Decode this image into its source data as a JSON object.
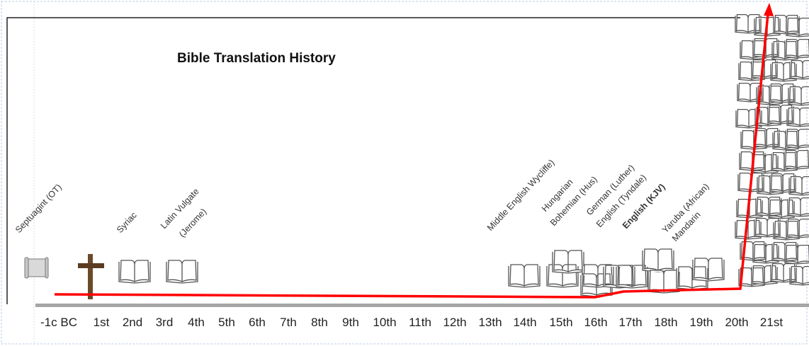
{
  "title": "Bible Translation History",
  "axis_labels": [
    "-1c BC",
    "1st",
    "2nd",
    "3rd",
    "4th",
    "5th",
    "6th",
    "7th",
    "8th",
    "9th",
    "10th",
    "11th",
    "12th",
    "13th",
    "14th",
    "15th",
    "16th",
    "17th",
    "18th",
    "19th",
    "20th",
    "21st"
  ],
  "translations": [
    {
      "text": "Septuagint (OT)",
      "bold": false
    },
    {
      "text": "Syriac",
      "bold": false
    },
    {
      "text": "Latin Vulgate",
      "bold": false
    },
    {
      "text": "(Jerome)",
      "bold": false
    },
    {
      "text": "Middle English Wycliffe)",
      "bold": false
    },
    {
      "text": "Hungarian",
      "bold": false
    },
    {
      "text": "Bohemian (Hus)",
      "bold": false
    },
    {
      "text": "German (Luther)",
      "bold": false
    },
    {
      "text": "English (Tyndale)",
      "bold": false
    },
    {
      "text": "English (KJV)",
      "bold": true
    },
    {
      "text": "Yaruba (African)",
      "bold": false
    },
    {
      "text": "Mandarin",
      "bold": false
    }
  ],
  "icons": [
    "scroll-icon",
    "cross-icon",
    "open-book-icon"
  ],
  "colors": {
    "trend_line": "#ff0000",
    "axis": "#a6a6a6",
    "book": "#555555",
    "cross": "#6b4a2a"
  }
}
